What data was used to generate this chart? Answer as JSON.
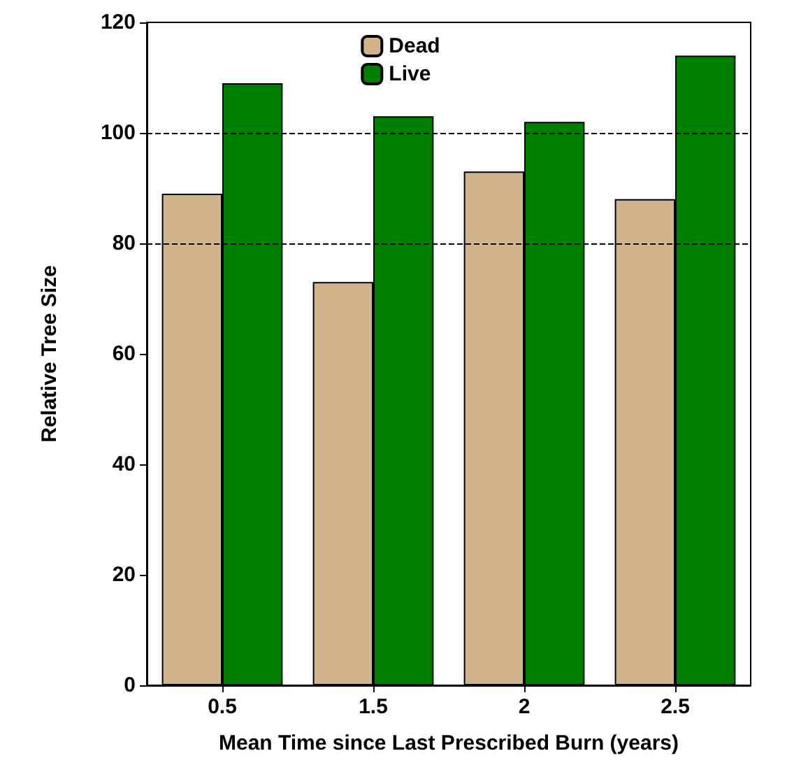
{
  "chart_data": {
    "type": "bar",
    "xlabel": "Mean Time since Last Prescribed Burn (years)",
    "ylabel": "Relative Tree Size",
    "categories": [
      "0.5",
      "1.5",
      "2",
      "2.5"
    ],
    "series": [
      {
        "name": "Dead",
        "color": "#d2b48c",
        "values": [
          89,
          73,
          93,
          88
        ]
      },
      {
        "name": "Live",
        "color": "#008000",
        "values": [
          109,
          103,
          102,
          114
        ]
      }
    ],
    "ylim": [
      0,
      120
    ],
    "yticks": [
      0,
      20,
      40,
      60,
      80,
      100,
      120
    ],
    "ref_lines": [
      {
        "axis": "y",
        "value": 80,
        "line_style": "dashed",
        "color": "#000000"
      },
      {
        "axis": "y",
        "value": 100,
        "line_style": "dashed",
        "color": "#000000"
      }
    ],
    "grid": false,
    "legend": "top"
  }
}
